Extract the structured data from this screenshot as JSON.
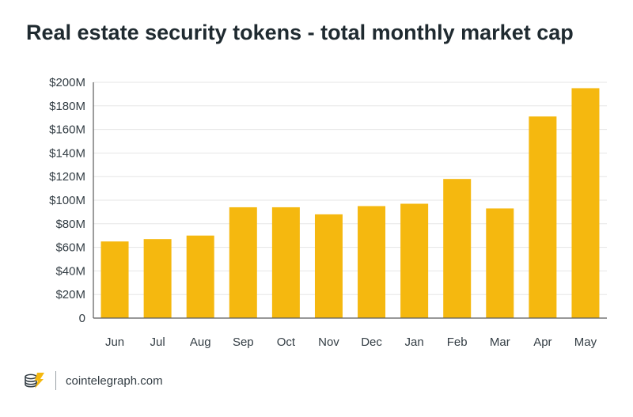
{
  "title": "Real estate security tokens - total monthly market cap",
  "footer": {
    "brand": "cointelegraph.com",
    "logo_icon": "cointelegraph-logo-icon"
  },
  "colors": {
    "bar": "#f5b80f",
    "grid": "#e6e6e6",
    "axis": "#5a5a5a",
    "text": "#333d44",
    "title": "#1f2a30"
  },
  "chart_data": {
    "type": "bar",
    "title": "Real estate security tokens - total monthly market cap",
    "xlabel": "",
    "ylabel": "",
    "categories": [
      "Jun",
      "Jul",
      "Aug",
      "Sep",
      "Oct",
      "Nov",
      "Dec",
      "Jan",
      "Feb",
      "Mar",
      "Apr",
      "May"
    ],
    "values": [
      65,
      67,
      70,
      94,
      94,
      88,
      95,
      97,
      118,
      93,
      171,
      195
    ],
    "value_unit": "$M",
    "ylim": [
      0,
      200
    ],
    "yticks": [
      0,
      20,
      40,
      60,
      80,
      100,
      120,
      140,
      160,
      180,
      200
    ],
    "ytick_labels": [
      "0",
      "$20M",
      "$40M",
      "$60M",
      "$80M",
      "$100M",
      "$120M",
      "$140M",
      "$160M",
      "$180M",
      "$200M"
    ],
    "grid": true,
    "legend": "none"
  }
}
